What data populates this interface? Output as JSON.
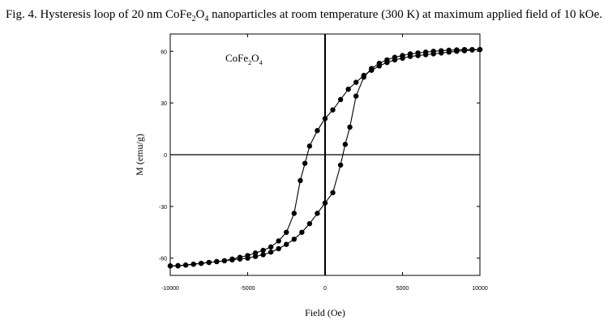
{
  "caption": {
    "prefix": "Fig. 4. Hysteresis loop of 20 nm CoFe",
    "sub1": "2",
    "mid": "O",
    "sub2": "4",
    "suffix": " nanoparticles at room temperature (300 K) at maximum applied field of 10 kOe."
  },
  "chart_data": {
    "type": "scatter",
    "title": "",
    "xlabel": "Field (Oe)",
    "ylabel": "M (emu/g)",
    "xlim": [
      -10000,
      10000
    ],
    "ylim": [
      -70,
      70
    ],
    "xticks": [
      -10000,
      -5000,
      0,
      5000,
      10000
    ],
    "yticks": [
      -60,
      -30,
      0,
      30,
      60
    ],
    "grid": false,
    "legend": "none",
    "annotation": {
      "base": "CoFe",
      "sub1": "2",
      "mid": "O",
      "sub2": "4"
    },
    "series": [
      {
        "x": [
          10000,
          9500,
          9000,
          8500,
          8000,
          7500,
          7000,
          6500,
          6000,
          5500,
          5000,
          4500,
          4000,
          3500,
          3000,
          2500,
          2000,
          1500,
          1000,
          500,
          0,
          -500,
          -1000,
          -1300,
          -1600,
          -2000,
          -2500,
          -3000,
          -3500,
          -4000,
          -4500,
          -5000,
          -5500,
          -6000,
          -6500,
          -7000,
          -7500,
          -8000,
          -8500,
          -9000,
          -9500,
          -10000
        ],
        "y": [
          61,
          60.7,
          60.3,
          60,
          59.5,
          59,
          58.5,
          58,
          57.5,
          57,
          56,
          55,
          53.5,
          51.5,
          49,
          46,
          42,
          38,
          32,
          26,
          21,
          14,
          5,
          -5,
          -15,
          -34,
          -45,
          -50,
          -53.5,
          -55.5,
          -57,
          -58.5,
          -59.5,
          -60.5,
          -61.5,
          -62,
          -62.5,
          -63,
          -63.5,
          -64,
          -64.5,
          -64.5
        ]
      },
      {
        "x": [
          -10000,
          -9500,
          -9000,
          -8500,
          -8000,
          -7500,
          -7000,
          -6500,
          -6000,
          -5500,
          -5000,
          -4500,
          -4000,
          -3500,
          -3000,
          -2500,
          -2000,
          -1500,
          -1000,
          -500,
          0,
          500,
          1000,
          1300,
          1600,
          2000,
          2500,
          3000,
          3500,
          4000,
          4500,
          5000,
          5500,
          6000,
          6500,
          7000,
          7500,
          8000,
          8500,
          9000,
          9500,
          10000
        ],
        "y": [
          -64.5,
          -64.3,
          -64,
          -63.5,
          -63,
          -62.5,
          -62,
          -61.5,
          -61,
          -60.5,
          -60,
          -59,
          -58,
          -56.5,
          -54.5,
          -52,
          -49,
          -45,
          -40,
          -34,
          -28,
          -22,
          -6,
          6,
          16,
          34,
          45,
          50,
          53,
          55,
          56.5,
          57.5,
          58.5,
          59,
          59.5,
          60,
          60.3,
          60.6,
          60.8,
          61,
          61,
          61
        ]
      }
    ]
  }
}
